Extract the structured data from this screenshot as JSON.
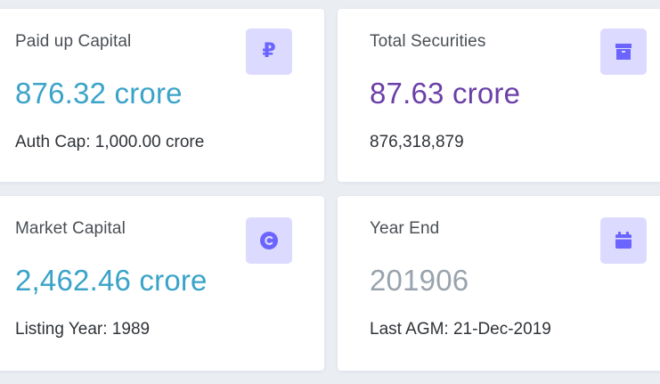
{
  "cards": [
    {
      "label": "Paid up Capital",
      "value": "876.32 crore",
      "sub": "Auth Cap: 1,000.00 crore",
      "icon": "ruble-icon",
      "value_color": "#3aa3c8"
    },
    {
      "label": "Total Securities",
      "value": "87.63 crore",
      "sub": "876,318,879",
      "icon": "box-icon",
      "value_color": "#6a3fa8"
    },
    {
      "label": "Market Capital",
      "value": "2,462.46 crore",
      "sub": "Listing Year: 1989",
      "icon": "copyright-icon",
      "value_color": "#3aa3c8"
    },
    {
      "label": "Year End",
      "value": "201906",
      "sub": "Last AGM: 21-Dec-2019",
      "icon": "calendar-icon",
      "value_color": "#9aa3ad"
    }
  ],
  "colors": {
    "icon_bg": "#dcdbff",
    "icon_fg": "#6b64ff",
    "page_bg": "#eaedf2"
  }
}
